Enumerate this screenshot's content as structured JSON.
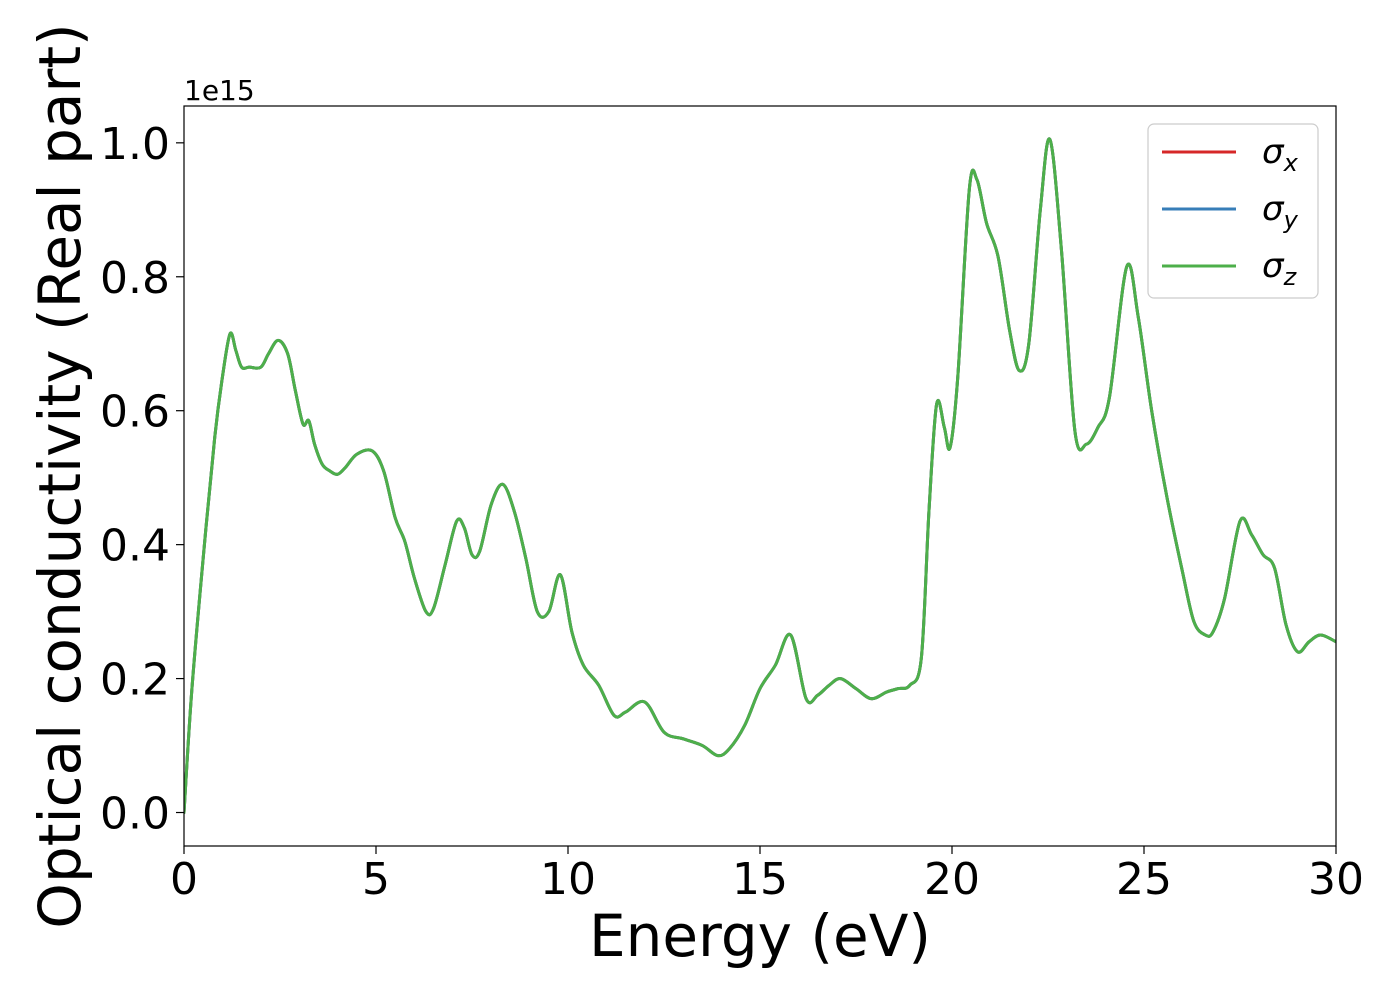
{
  "chart_data": {
    "type": "line",
    "title": "",
    "xlabel": "Energy (eV)",
    "ylabel": "Optical conductivity (Real part)",
    "y_offset_text": "1e15",
    "xlim": [
      0,
      30
    ],
    "ylim": [
      -0.05,
      1.055
    ],
    "xticks": [
      0,
      5,
      10,
      15,
      20,
      25,
      30
    ],
    "yticks": [
      0.0,
      0.2,
      0.4,
      0.6,
      0.8,
      1.0
    ],
    "xtick_labels": [
      "0",
      "5",
      "10",
      "15",
      "20",
      "25",
      "30"
    ],
    "ytick_labels": [
      "0.0",
      "0.2",
      "0.4",
      "0.6",
      "0.8",
      "1.0"
    ],
    "grid": false,
    "legend_position": "top-right",
    "x": [
      0,
      0.2,
      0.5,
      0.8,
      1.0,
      1.2,
      1.35,
      1.5,
      1.7,
      2.0,
      2.2,
      2.45,
      2.7,
      2.9,
      3.1,
      3.25,
      3.4,
      3.6,
      3.8,
      4.0,
      4.2,
      4.5,
      4.9,
      5.2,
      5.5,
      5.75,
      6.0,
      6.3,
      6.5,
      6.8,
      7.1,
      7.3,
      7.5,
      7.7,
      8.0,
      8.3,
      8.6,
      8.9,
      9.2,
      9.5,
      9.8,
      10.1,
      10.4,
      10.8,
      11.2,
      11.5,
      12.0,
      12.5,
      13.0,
      13.5,
      13.9,
      14.2,
      14.6,
      15.0,
      15.4,
      15.8,
      16.2,
      16.5,
      16.8,
      17.1,
      17.5,
      17.9,
      18.3,
      18.6,
      18.9,
      19.2,
      19.4,
      19.6,
      19.8,
      19.95,
      20.15,
      20.45,
      20.65,
      20.9,
      21.2,
      21.5,
      21.75,
      22.0,
      22.3,
      22.55,
      22.85,
      23.2,
      23.5,
      23.8,
      24.1,
      24.55,
      24.85,
      25.2,
      25.6,
      26.0,
      26.3,
      26.6,
      26.8,
      27.1,
      27.5,
      27.8,
      28.1,
      28.4,
      28.7,
      29.0,
      29.3,
      29.6,
      30.0
    ],
    "series": [
      {
        "name": "σx",
        "color": "#d62728",
        "values": [
          0.0,
          0.18,
          0.38,
          0.56,
          0.65,
          0.715,
          0.69,
          0.665,
          0.665,
          0.665,
          0.685,
          0.705,
          0.685,
          0.63,
          0.58,
          0.585,
          0.55,
          0.52,
          0.51,
          0.505,
          0.515,
          0.535,
          0.54,
          0.51,
          0.44,
          0.405,
          0.35,
          0.3,
          0.305,
          0.37,
          0.435,
          0.425,
          0.385,
          0.39,
          0.46,
          0.49,
          0.45,
          0.38,
          0.3,
          0.3,
          0.355,
          0.27,
          0.22,
          0.19,
          0.145,
          0.15,
          0.165,
          0.12,
          0.11,
          0.1,
          0.085,
          0.095,
          0.13,
          0.185,
          0.22,
          0.265,
          0.17,
          0.175,
          0.19,
          0.2,
          0.185,
          0.17,
          0.18,
          0.185,
          0.19,
          0.23,
          0.45,
          0.61,
          0.575,
          0.545,
          0.65,
          0.93,
          0.945,
          0.88,
          0.83,
          0.72,
          0.66,
          0.7,
          0.9,
          1.005,
          0.84,
          0.57,
          0.55,
          0.575,
          0.62,
          0.815,
          0.74,
          0.6,
          0.47,
          0.36,
          0.285,
          0.265,
          0.27,
          0.32,
          0.435,
          0.415,
          0.385,
          0.365,
          0.28,
          0.24,
          0.255,
          0.265,
          0.255
        ]
      },
      {
        "name": "σy",
        "color": "#377eb8",
        "values": [
          0.0,
          0.18,
          0.38,
          0.56,
          0.65,
          0.715,
          0.69,
          0.665,
          0.665,
          0.665,
          0.685,
          0.705,
          0.685,
          0.63,
          0.58,
          0.585,
          0.55,
          0.52,
          0.51,
          0.505,
          0.515,
          0.535,
          0.54,
          0.51,
          0.44,
          0.405,
          0.35,
          0.3,
          0.305,
          0.37,
          0.435,
          0.425,
          0.385,
          0.39,
          0.46,
          0.49,
          0.45,
          0.38,
          0.3,
          0.3,
          0.355,
          0.27,
          0.22,
          0.19,
          0.145,
          0.15,
          0.165,
          0.12,
          0.11,
          0.1,
          0.085,
          0.095,
          0.13,
          0.185,
          0.22,
          0.265,
          0.17,
          0.175,
          0.19,
          0.2,
          0.185,
          0.17,
          0.18,
          0.185,
          0.19,
          0.23,
          0.45,
          0.61,
          0.575,
          0.545,
          0.65,
          0.93,
          0.945,
          0.88,
          0.83,
          0.72,
          0.66,
          0.7,
          0.9,
          1.005,
          0.84,
          0.57,
          0.55,
          0.575,
          0.62,
          0.815,
          0.74,
          0.6,
          0.47,
          0.36,
          0.285,
          0.265,
          0.27,
          0.32,
          0.435,
          0.415,
          0.385,
          0.365,
          0.28,
          0.24,
          0.255,
          0.265,
          0.255
        ]
      },
      {
        "name": "σz",
        "color": "#4daf4a",
        "values": [
          0.0,
          0.18,
          0.38,
          0.56,
          0.65,
          0.715,
          0.69,
          0.665,
          0.665,
          0.665,
          0.685,
          0.705,
          0.685,
          0.63,
          0.58,
          0.585,
          0.55,
          0.52,
          0.51,
          0.505,
          0.515,
          0.535,
          0.54,
          0.51,
          0.44,
          0.405,
          0.35,
          0.3,
          0.305,
          0.37,
          0.435,
          0.425,
          0.385,
          0.39,
          0.46,
          0.49,
          0.45,
          0.38,
          0.3,
          0.3,
          0.355,
          0.27,
          0.22,
          0.19,
          0.145,
          0.15,
          0.165,
          0.12,
          0.11,
          0.1,
          0.085,
          0.095,
          0.13,
          0.185,
          0.22,
          0.265,
          0.17,
          0.175,
          0.19,
          0.2,
          0.185,
          0.17,
          0.18,
          0.185,
          0.19,
          0.23,
          0.45,
          0.61,
          0.575,
          0.545,
          0.65,
          0.93,
          0.945,
          0.88,
          0.83,
          0.72,
          0.66,
          0.7,
          0.9,
          1.005,
          0.84,
          0.57,
          0.55,
          0.575,
          0.62,
          0.815,
          0.74,
          0.6,
          0.47,
          0.36,
          0.285,
          0.265,
          0.27,
          0.32,
          0.435,
          0.415,
          0.385,
          0.365,
          0.28,
          0.24,
          0.255,
          0.265,
          0.255
        ]
      }
    ],
    "legend": [
      {
        "symbol": "σ",
        "sub": "x",
        "color": "#d62728"
      },
      {
        "symbol": "σ",
        "sub": "y",
        "color": "#377eb8"
      },
      {
        "symbol": "σ",
        "sub": "z",
        "color": "#4daf4a"
      }
    ]
  }
}
